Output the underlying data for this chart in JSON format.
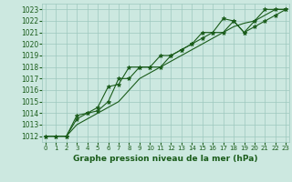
{
  "title": "Graphe pression niveau de la mer (hPa)",
  "x": [
    0,
    1,
    2,
    3,
    4,
    5,
    6,
    7,
    8,
    9,
    10,
    11,
    12,
    13,
    14,
    15,
    16,
    17,
    18,
    19,
    20,
    21,
    22,
    23
  ],
  "line1_y": [
    1012,
    1012,
    1012,
    1013.8,
    1014,
    1014.2,
    1015,
    1017,
    1017,
    1018,
    1018,
    1018,
    1019,
    1019.5,
    1020,
    1020.5,
    1021,
    1021,
    1022,
    1021,
    1022,
    1023,
    1023,
    1023
  ],
  "line2_y": [
    1012,
    1012,
    1012,
    1013.5,
    1014,
    1014.5,
    1016.3,
    1016.5,
    1018,
    1018,
    1018,
    1019,
    1019,
    1019.5,
    1020,
    1021,
    1021,
    1022.2,
    1022,
    1021,
    1021.5,
    1022,
    1022.5,
    1023
  ],
  "line3_y": [
    1012,
    1012,
    1012,
    1013,
    1013.5,
    1014,
    1014.5,
    1015,
    1016,
    1017,
    1017.5,
    1018,
    1018.5,
    1019,
    1019.5,
    1020,
    1020.5,
    1021,
    1021.5,
    1021.8,
    1022,
    1022.5,
    1023,
    1023
  ],
  "ylim": [
    1011.5,
    1023.5
  ],
  "xlim": [
    -0.3,
    23.3
  ],
  "yticks": [
    1012,
    1013,
    1014,
    1015,
    1016,
    1017,
    1018,
    1019,
    1020,
    1021,
    1022,
    1023
  ],
  "xticks": [
    0,
    1,
    2,
    3,
    4,
    5,
    6,
    7,
    8,
    9,
    10,
    11,
    12,
    13,
    14,
    15,
    16,
    17,
    18,
    19,
    20,
    21,
    22,
    23
  ],
  "line_color": "#1a5c1a",
  "bg_color": "#cce8e0",
  "grid_color": "#9ec8be",
  "label_color": "#1a5c1a",
  "marker": "*",
  "marker_size": 3.5,
  "linewidth": 0.8,
  "ytick_fontsize": 5.5,
  "xtick_fontsize": 5.0,
  "xlabel_fontsize": 6.5
}
